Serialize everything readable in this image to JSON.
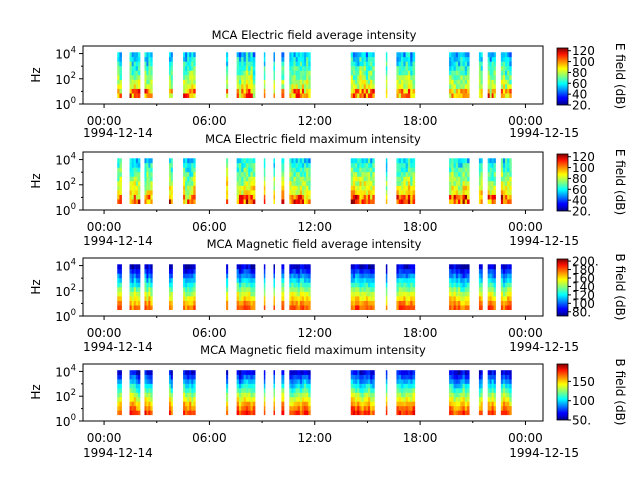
{
  "chart_data": [
    {
      "type": "heatmap",
      "title": "MCA  Electric field average intensity",
      "ylabel": "Hz",
      "ytick_base": "10",
      "ytick_exponents": [
        "0",
        "2",
        "4"
      ],
      "xtick_labels": [
        "00:00",
        "06:00",
        "12:00",
        "18:00",
        "00:00"
      ],
      "x_dates": [
        "1994-12-14",
        "1994-12-15"
      ],
      "x_hours": [
        0,
        6,
        12,
        18,
        24
      ],
      "xlim_hours": [
        -1.2,
        25
      ],
      "ylim_log10_hz": [
        0,
        4.6
      ],
      "colorbar": {
        "label": "E field (dB)",
        "ticks": [
          "20.",
          "40",
          "60",
          "80",
          "100",
          "120"
        ],
        "range": [
          20,
          125
        ]
      },
      "data_intervals_hours": [
        [
          0.75,
          1.0
        ],
        [
          1.45,
          2.05
        ],
        [
          2.3,
          2.75
        ],
        [
          3.7,
          3.9
        ],
        [
          4.5,
          5.2
        ],
        [
          6.95,
          7.05
        ],
        [
          7.55,
          8.6
        ],
        [
          9.1,
          9.15
        ],
        [
          9.65,
          9.7
        ],
        [
          10.1,
          10.25
        ],
        [
          10.55,
          11.75
        ],
        [
          14.05,
          15.4
        ],
        [
          16.05,
          16.1
        ],
        [
          16.65,
          17.7
        ],
        [
          19.65,
          20.8
        ],
        [
          21.35,
          21.55
        ],
        [
          21.85,
          22.3
        ],
        [
          22.6,
          23.2
        ]
      ],
      "freq_range_log10_hz": [
        0.5,
        4.1
      ],
      "intensity_description": "strongest at low frequencies (~10-100 Hz), about 60-100 dB, weaker (~40-60 dB) at higher frequencies"
    },
    {
      "type": "heatmap",
      "title": "MCA  Electric field maximum intensity",
      "ylabel": "Hz",
      "ytick_base": "10",
      "ytick_exponents": [
        "0",
        "2",
        "4"
      ],
      "xtick_labels": [
        "00:00",
        "06:00",
        "12:00",
        "18:00",
        "00:00"
      ],
      "x_dates": [
        "1994-12-14",
        "1994-12-15"
      ],
      "x_hours": [
        0,
        6,
        12,
        18,
        24
      ],
      "xlim_hours": [
        -1.2,
        25
      ],
      "ylim_log10_hz": [
        0,
        4.6
      ],
      "colorbar": {
        "label": "E field (dB)",
        "ticks": [
          "20.",
          "40",
          "60",
          "80",
          "100",
          "120"
        ],
        "range": [
          20,
          125
        ]
      },
      "data_intervals_hours": [
        [
          0.75,
          1.0
        ],
        [
          1.45,
          2.05
        ],
        [
          2.3,
          2.75
        ],
        [
          3.7,
          3.9
        ],
        [
          4.5,
          5.2
        ],
        [
          6.95,
          7.05
        ],
        [
          7.55,
          8.6
        ],
        [
          9.1,
          9.15
        ],
        [
          9.65,
          9.7
        ],
        [
          10.1,
          10.25
        ],
        [
          10.55,
          11.75
        ],
        [
          14.05,
          15.4
        ],
        [
          16.05,
          16.1
        ],
        [
          16.65,
          17.7
        ],
        [
          19.65,
          20.8
        ],
        [
          21.35,
          21.55
        ],
        [
          21.85,
          22.3
        ],
        [
          22.6,
          23.2
        ]
      ],
      "freq_range_log10_hz": [
        0.5,
        4.1
      ],
      "intensity_description": "peaks ~80-110 dB at low frequencies, ~60 dB at higher frequencies"
    },
    {
      "type": "heatmap",
      "title": "MCA  Magnetic field average intensity",
      "ylabel": "Hz",
      "ytick_base": "10",
      "ytick_exponents": [
        "0",
        "2",
        "4"
      ],
      "xtick_labels": [
        "00:00",
        "06:00",
        "12:00",
        "18:00",
        "00:00"
      ],
      "x_dates": [
        "1994-12-14",
        "1994-12-15"
      ],
      "x_hours": [
        0,
        6,
        12,
        18,
        24
      ],
      "xlim_hours": [
        -1.2,
        25
      ],
      "ylim_log10_hz": [
        0,
        4.6
      ],
      "colorbar": {
        "label": "B field (dB)",
        "ticks": [
          "80.",
          "100",
          "120",
          "140",
          "160",
          "180",
          "200."
        ],
        "range": [
          70,
          205
        ]
      },
      "data_intervals_hours": [
        [
          0.75,
          1.0
        ],
        [
          1.45,
          2.05
        ],
        [
          2.3,
          2.75
        ],
        [
          3.7,
          3.9
        ],
        [
          4.5,
          5.2
        ],
        [
          6.95,
          7.05
        ],
        [
          7.55,
          8.6
        ],
        [
          9.1,
          9.15
        ],
        [
          9.65,
          9.7
        ],
        [
          10.1,
          10.25
        ],
        [
          10.55,
          11.75
        ],
        [
          14.05,
          15.4
        ],
        [
          16.05,
          16.1
        ],
        [
          16.65,
          17.7
        ],
        [
          19.65,
          20.8
        ],
        [
          21.35,
          21.55
        ],
        [
          21.85,
          22.3
        ],
        [
          22.6,
          23.2
        ]
      ],
      "freq_range_log10_hz": [
        0.5,
        4.1
      ],
      "intensity_description": "~140-160 dB at low frequencies falling to ~80 dB near 10^4 Hz"
    },
    {
      "type": "heatmap",
      "title": "MCA  Magnetic field maximum intensity",
      "ylabel": "Hz",
      "ytick_base": "10",
      "ytick_exponents": [
        "0",
        "2",
        "4"
      ],
      "xtick_labels": [
        "00:00",
        "06:00",
        "12:00",
        "18:00",
        "00:00"
      ],
      "x_dates": [
        "1994-12-14",
        "1994-12-15"
      ],
      "x_hours": [
        0,
        6,
        12,
        18,
        24
      ],
      "xlim_hours": [
        -1.2,
        25
      ],
      "ylim_log10_hz": [
        0,
        4.6
      ],
      "colorbar": {
        "label": "B field (dB)",
        "ticks": [
          "50.",
          "100",
          "150"
        ],
        "range": [
          50,
          195
        ]
      },
      "data_intervals_hours": [
        [
          0.75,
          1.0
        ],
        [
          1.45,
          2.05
        ],
        [
          2.3,
          2.75
        ],
        [
          3.7,
          3.9
        ],
        [
          4.5,
          5.2
        ],
        [
          6.95,
          7.05
        ],
        [
          7.55,
          8.6
        ],
        [
          9.1,
          9.15
        ],
        [
          9.65,
          9.7
        ],
        [
          10.1,
          10.25
        ],
        [
          10.55,
          11.75
        ],
        [
          14.05,
          15.4
        ],
        [
          16.05,
          16.1
        ],
        [
          16.65,
          17.7
        ],
        [
          19.65,
          20.8
        ],
        [
          21.35,
          21.55
        ],
        [
          21.85,
          22.3
        ],
        [
          22.6,
          23.2
        ]
      ],
      "freq_range_log10_hz": [
        0.5,
        4.1
      ],
      "intensity_description": "~150-180 dB at low frequencies falling to ~80-100 dB near 10^4 Hz"
    }
  ]
}
